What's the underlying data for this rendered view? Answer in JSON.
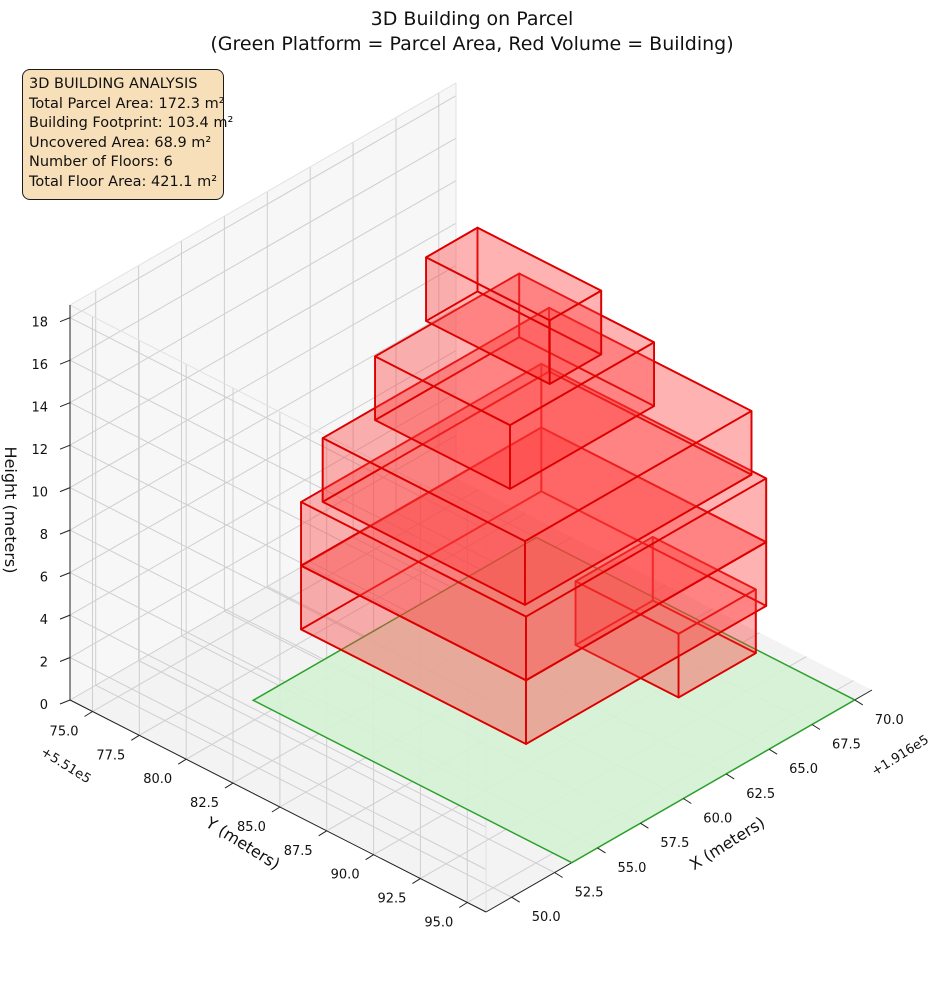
{
  "chart_data": {
    "type": "3d-box",
    "title": "3D Building on Parcel",
    "subtitle": "(Green Platform = Parcel Area, Red Volume = Building)",
    "xlabel": "X (meters)",
    "ylabel": "Y (meters)",
    "zlabel": "Height (meters)",
    "x_offset_label": "+1.916e5",
    "y_offset_label": "+5.51e5",
    "x_ticks": [
      "50.0",
      "52.5",
      "55.0",
      "57.5",
      "60.0",
      "62.5",
      "65.0",
      "67.5",
      "70.0"
    ],
    "y_ticks": [
      "75.0",
      "77.5",
      "80.0",
      "82.5",
      "85.0",
      "87.5",
      "90.0",
      "92.5",
      "95.0"
    ],
    "z_ticks": [
      "0",
      "2",
      "4",
      "6",
      "8",
      "10",
      "12",
      "14",
      "16",
      "18"
    ],
    "xlim": [
      48.5,
      71.0
    ],
    "ylim": [
      73.8,
      96.0
    ],
    "zlim": [
      0,
      18.6
    ],
    "parcel": {
      "x": [
        53.5,
        70.0
      ],
      "y": [
        79.0,
        96.0
      ],
      "z": 0,
      "color": "#2ca02c",
      "fill": "#d5f2d5"
    },
    "building_color": "#dd0000",
    "building_fill": "#ff3c3c",
    "floors": [
      {
        "x": [
          65.3,
          69.8
        ],
        "y": [
          85.4,
          90.9
        ],
        "z": [
          0,
          3
        ]
      },
      {
        "x": [
          55.2,
          69.2
        ],
        "y": [
          80.0,
          92.0
        ],
        "z": [
          3,
          6
        ]
      },
      {
        "x": [
          55.2,
          69.2
        ],
        "y": [
          80.0,
          92.0
        ],
        "z": [
          6,
          9
        ]
      },
      {
        "x": [
          55.8,
          69.0
        ],
        "y": [
          80.6,
          91.4
        ],
        "z": [
          9,
          12
        ]
      },
      {
        "x": [
          58.2,
          66.6
        ],
        "y": [
          81.2,
          88.4
        ],
        "z": [
          12,
          15
        ]
      },
      {
        "x": [
          61.5,
          64.5
        ],
        "y": [
          80.9,
          87.5
        ],
        "z": [
          15,
          18
        ]
      }
    ],
    "grid": true,
    "legend": "none"
  },
  "info": {
    "heading": "3D BUILDING ANALYSIS",
    "lines": [
      "Total Parcel Area: 172.3 m²",
      "Building Footprint: 103.4 m²",
      "Uncovered Area: 68.9 m²",
      "Number of Floors: 6",
      "Total Floor Area: 421.1 m²"
    ]
  }
}
